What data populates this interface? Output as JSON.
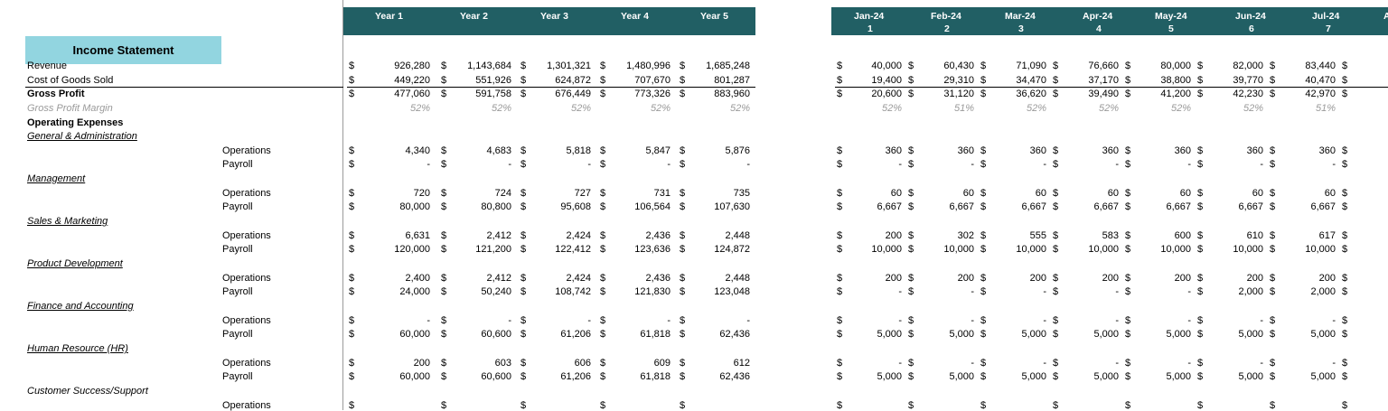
{
  "header": {
    "annual": [
      "Year 1",
      "Year 2",
      "Year 3",
      "Year 4",
      "Year 5"
    ],
    "months": [
      {
        "label": "Jan-24",
        "index": "1"
      },
      {
        "label": "Feb-24",
        "index": "2"
      },
      {
        "label": "Mar-24",
        "index": "3"
      },
      {
        "label": "Apr-24",
        "index": "4"
      },
      {
        "label": "May-24",
        "index": "5"
      },
      {
        "label": "Jun-24",
        "index": "6"
      },
      {
        "label": "Jul-24",
        "index": "7"
      }
    ],
    "partial_next": "A"
  },
  "title": "Income Statement",
  "currency_symbol": "$",
  "rows": [
    {
      "label": "Revenue",
      "annual": [
        "926,280",
        "1,143,684",
        "1,301,321",
        "1,480,996",
        "1,685,248"
      ],
      "monthly": [
        "40,000",
        "60,430",
        "71,090",
        "76,660",
        "80,000",
        "82,000",
        "83,440"
      ]
    },
    {
      "label": "Cost of Goods Sold",
      "annual": [
        "449,220",
        "551,926",
        "624,872",
        "707,670",
        "801,287"
      ],
      "monthly": [
        "19,400",
        "29,310",
        "34,470",
        "37,170",
        "38,800",
        "39,770",
        "40,470"
      ]
    },
    {
      "label": "Gross Profit",
      "annual": [
        "477,060",
        "591,758",
        "676,449",
        "773,326",
        "883,960"
      ],
      "monthly": [
        "20,600",
        "31,120",
        "36,620",
        "39,490",
        "41,200",
        "42,230",
        "42,970"
      ]
    },
    {
      "label": "Gross Profit Margin",
      "annual": [
        "52%",
        "52%",
        "52%",
        "52%",
        "52%"
      ],
      "monthly": [
        "52%",
        "51%",
        "52%",
        "52%",
        "52%",
        "52%",
        "51%"
      ]
    },
    {
      "label": "Operating Expenses"
    },
    {
      "label": "General & Administration"
    },
    {
      "label": "Operations",
      "annual": [
        "4,340",
        "4,683",
        "5,818",
        "5,847",
        "5,876"
      ],
      "monthly": [
        "360",
        "360",
        "360",
        "360",
        "360",
        "360",
        "360"
      ]
    },
    {
      "label": "Payroll",
      "annual": [
        "-",
        "-",
        "-",
        "-",
        "-"
      ],
      "monthly": [
        "-",
        "-",
        "-",
        "-",
        "-",
        "-",
        "-"
      ]
    },
    {
      "label": "Management"
    },
    {
      "label": "Operations",
      "annual": [
        "720",
        "724",
        "727",
        "731",
        "735"
      ],
      "monthly": [
        "60",
        "60",
        "60",
        "60",
        "60",
        "60",
        "60"
      ]
    },
    {
      "label": "Payroll",
      "annual": [
        "80,000",
        "80,800",
        "95,608",
        "106,564",
        "107,630"
      ],
      "monthly": [
        "6,667",
        "6,667",
        "6,667",
        "6,667",
        "6,667",
        "6,667",
        "6,667"
      ]
    },
    {
      "label": "Sales & Marketing"
    },
    {
      "label": "Operations",
      "annual": [
        "6,631",
        "2,412",
        "2,424",
        "2,436",
        "2,448"
      ],
      "monthly": [
        "200",
        "302",
        "555",
        "583",
        "600",
        "610",
        "617"
      ]
    },
    {
      "label": "Payroll",
      "annual": [
        "120,000",
        "121,200",
        "122,412",
        "123,636",
        "124,872"
      ],
      "monthly": [
        "10,000",
        "10,000",
        "10,000",
        "10,000",
        "10,000",
        "10,000",
        "10,000"
      ]
    },
    {
      "label": "Product Development"
    },
    {
      "label": "Operations",
      "annual": [
        "2,400",
        "2,412",
        "2,424",
        "2,436",
        "2,448"
      ],
      "monthly": [
        "200",
        "200",
        "200",
        "200",
        "200",
        "200",
        "200"
      ]
    },
    {
      "label": "Payroll",
      "annual": [
        "24,000",
        "50,240",
        "108,742",
        "121,830",
        "123,048"
      ],
      "monthly": [
        "-",
        "-",
        "-",
        "-",
        "-",
        "2,000",
        "2,000"
      ]
    },
    {
      "label": "Finance and Accounting"
    },
    {
      "label": "Operations",
      "annual": [
        "-",
        "-",
        "-",
        "-",
        "-"
      ],
      "monthly": [
        "-",
        "-",
        "-",
        "-",
        "-",
        "-",
        "-"
      ]
    },
    {
      "label": "Payroll",
      "annual": [
        "60,000",
        "60,600",
        "61,206",
        "61,818",
        "62,436"
      ],
      "monthly": [
        "5,000",
        "5,000",
        "5,000",
        "5,000",
        "5,000",
        "5,000",
        "5,000"
      ]
    },
    {
      "label": "Human Resource (HR)"
    },
    {
      "label": "Operations",
      "annual": [
        "200",
        "603",
        "606",
        "609",
        "612"
      ],
      "monthly": [
        "-",
        "-",
        "-",
        "-",
        "-",
        "-",
        "-"
      ]
    },
    {
      "label": "Payroll",
      "annual": [
        "60,000",
        "60,600",
        "61,206",
        "61,818",
        "62,436"
      ],
      "monthly": [
        "5,000",
        "5,000",
        "5,000",
        "5,000",
        "5,000",
        "5,000",
        "5,000"
      ]
    },
    {
      "label": "Customer Success/Support"
    },
    {
      "label": "Operations"
    }
  ]
}
